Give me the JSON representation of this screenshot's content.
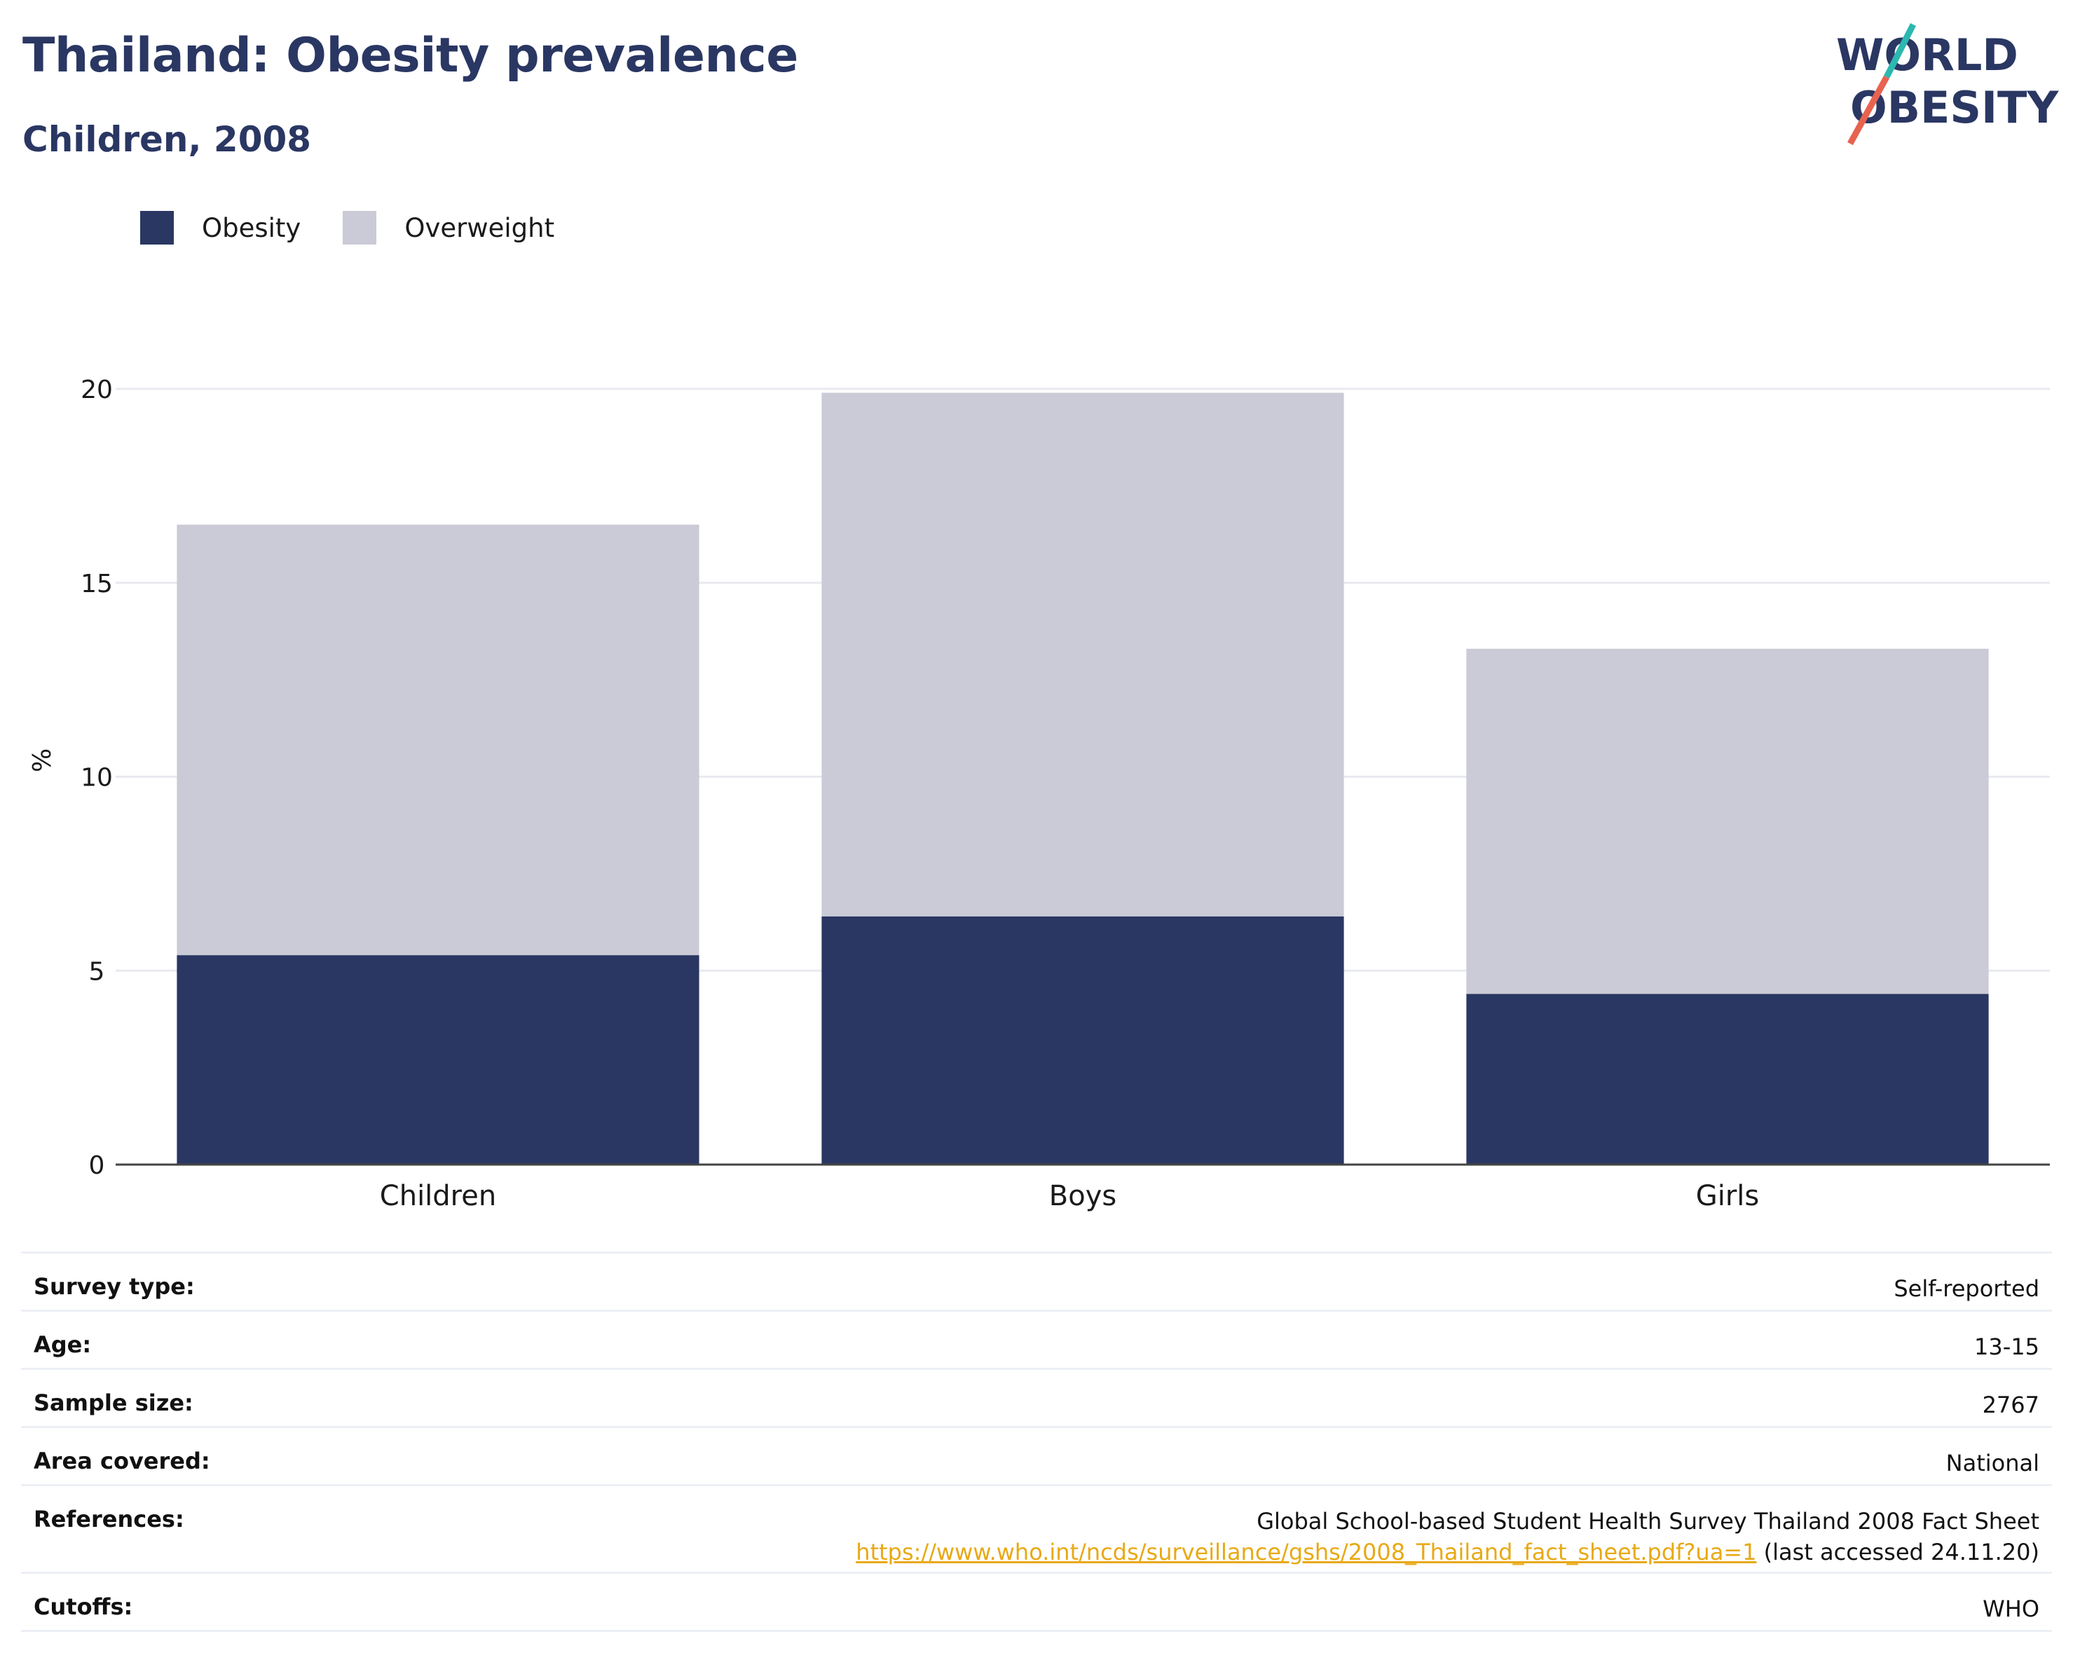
{
  "header": {
    "title": "Thailand: Obesity prevalence",
    "subtitle": "Children, 2008"
  },
  "logo": {
    "line1": "WORLD",
    "line2": "OBESITY",
    "colors": {
      "text": "#2a3763",
      "slash_teal": "#2cb8b0",
      "slash_coral": "#e8634f"
    }
  },
  "colors": {
    "obesity": "#2a3763",
    "overweight": "#cacbd7",
    "grid": "#e8eaef",
    "axis": "#444444",
    "link": "#e8a915"
  },
  "chart_data": {
    "type": "bar",
    "stacked": true,
    "categories": [
      "Children",
      "Boys",
      "Girls"
    ],
    "series": [
      {
        "name": "Obesity",
        "values": [
          5.4,
          6.4,
          4.4
        ]
      },
      {
        "name": "Overweight",
        "values": [
          11.1,
          13.5,
          8.9
        ]
      }
    ],
    "ylabel": "%",
    "ylim": [
      0,
      20
    ],
    "yticks": [
      "0",
      "5",
      "10",
      "15",
      "20"
    ],
    "grid": true,
    "legend_position": "top-left"
  },
  "info": {
    "rows": [
      {
        "key": "Survey type:",
        "value": "Self-reported"
      },
      {
        "key": "Age:",
        "value": "13-15"
      },
      {
        "key": "Sample size:",
        "value": "2767"
      },
      {
        "key": "Area covered:",
        "value": "National"
      },
      {
        "key": "References:",
        "value": "Global School-based Student Health Survey Thailand 2008 Fact Sheet",
        "link": "https://www.who.int/ncds/surveillance/gshs/2008_Thailand_fact_sheet.pdf?ua=1",
        "suffix": " (last accessed 24.11.20)"
      },
      {
        "key": "Cutoffs:",
        "value": "WHO"
      }
    ]
  }
}
